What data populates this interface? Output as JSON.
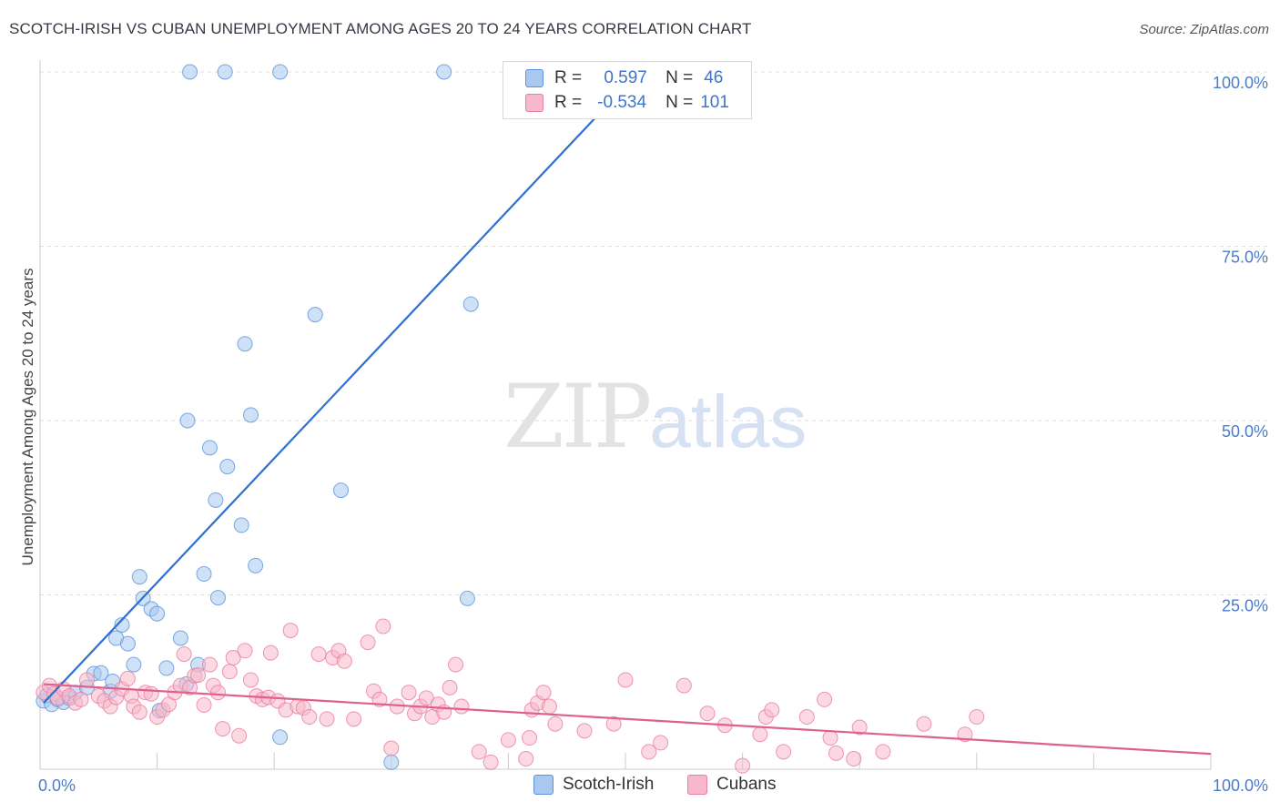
{
  "title": "SCOTCH-IRISH VS CUBAN UNEMPLOYMENT AMONG AGES 20 TO 24 YEARS CORRELATION CHART",
  "source": "Source: ZipAtlas.com",
  "watermark": {
    "zip": "ZIP",
    "atlas": "atlas"
  },
  "legend": {
    "rows": [
      {
        "r_label": "R =",
        "r_value": "0.597",
        "n_label": "N =",
        "n_value": "46",
        "color": "#a8c8f0"
      },
      {
        "r_label": "R =",
        "r_value": "-0.534",
        "n_label": "N =",
        "n_value": "101",
        "color": "#f7b8cb"
      }
    ]
  },
  "bottom_legend": [
    {
      "label": "Scotch-Irish",
      "color": "#a8c8f0"
    },
    {
      "label": "Cubans",
      "color": "#f7b8cb"
    }
  ],
  "chart_data": {
    "type": "scatter",
    "title": "SCOTCH-IRISH VS CUBAN UNEMPLOYMENT AMONG AGES 20 TO 24 YEARS CORRELATION CHART",
    "xlabel": "",
    "ylabel": "Unemployment Among Ages 20 to 24 years",
    "xlim": [
      0,
      100
    ],
    "ylim": [
      0,
      100
    ],
    "x_tick_labels": [
      "0.0%",
      "100.0%"
    ],
    "y_tick_labels": [
      "25.0%",
      "50.0%",
      "75.0%",
      "100.0%"
    ],
    "y_ticks": [
      25,
      50,
      75,
      100
    ],
    "grid": true,
    "legend_position": "top-center",
    "series": [
      {
        "name": "Scotch-Irish",
        "color": "#5b93dc",
        "fill": "#a8c8f0",
        "trend_color": "#2e6fd0",
        "trend": [
          [
            0.3,
            9.5
          ],
          [
            50,
            98
          ]
        ],
        "points": [
          [
            0.3,
            9.8
          ],
          [
            0.6,
            10.6
          ],
          [
            1.0,
            9.3
          ],
          [
            1.5,
            10.0
          ],
          [
            2.0,
            9.6
          ],
          [
            2.5,
            10.2
          ],
          [
            3.0,
            11.0
          ],
          [
            4.0,
            11.7
          ],
          [
            4.6,
            13.7
          ],
          [
            5.2,
            13.8
          ],
          [
            6.0,
            11.2
          ],
          [
            6.2,
            12.6
          ],
          [
            6.5,
            18.8
          ],
          [
            7.0,
            20.7
          ],
          [
            7.5,
            18.0
          ],
          [
            8.0,
            15.0
          ],
          [
            8.5,
            27.6
          ],
          [
            8.8,
            24.5
          ],
          [
            9.5,
            23.0
          ],
          [
            10.0,
            22.3
          ],
          [
            10.2,
            8.4
          ],
          [
            10.8,
            14.5
          ],
          [
            12.0,
            18.8
          ],
          [
            12.5,
            12.2
          ],
          [
            12.6,
            50.0
          ],
          [
            13.5,
            15.0
          ],
          [
            14.0,
            28.0
          ],
          [
            14.5,
            46.1
          ],
          [
            15.0,
            38.6
          ],
          [
            15.2,
            24.6
          ],
          [
            16.0,
            43.4
          ],
          [
            17.2,
            35.0
          ],
          [
            17.5,
            61.0
          ],
          [
            18.0,
            50.8
          ],
          [
            18.4,
            29.2
          ],
          [
            20.5,
            4.6
          ],
          [
            23.5,
            65.2
          ],
          [
            25.7,
            40.0
          ],
          [
            30.0,
            1.0
          ],
          [
            36.5,
            24.5
          ],
          [
            36.8,
            66.7
          ],
          [
            12.8,
            100
          ],
          [
            15.8,
            100
          ],
          [
            20.5,
            100
          ],
          [
            34.5,
            100
          ]
        ]
      },
      {
        "name": "Cubans",
        "color": "#e87ea0",
        "fill": "#f7b8cb",
        "trend_color": "#e0608c",
        "trend": [
          [
            0.3,
            12.2
          ],
          [
            100,
            2.2
          ]
        ],
        "points": [
          [
            0.3,
            11.0
          ],
          [
            0.8,
            12.0
          ],
          [
            1.2,
            10.8
          ],
          [
            1.5,
            10.2
          ],
          [
            2.0,
            11.5
          ],
          [
            2.5,
            10.5
          ],
          [
            3.0,
            9.5
          ],
          [
            3.5,
            10.0
          ],
          [
            4.0,
            12.8
          ],
          [
            5.0,
            10.5
          ],
          [
            5.5,
            9.8
          ],
          [
            6.0,
            9.0
          ],
          [
            6.5,
            10.3
          ],
          [
            7.0,
            11.5
          ],
          [
            7.5,
            13.0
          ],
          [
            7.8,
            10.5
          ],
          [
            8.0,
            9.0
          ],
          [
            8.5,
            8.2
          ],
          [
            9.0,
            11.0
          ],
          [
            9.5,
            10.8
          ],
          [
            10.0,
            7.5
          ],
          [
            10.5,
            8.5
          ],
          [
            11.0,
            9.3
          ],
          [
            11.5,
            11.0
          ],
          [
            12.0,
            12.0
          ],
          [
            12.3,
            16.5
          ],
          [
            12.8,
            11.7
          ],
          [
            13.2,
            13.4
          ],
          [
            13.5,
            13.5
          ],
          [
            14.0,
            9.2
          ],
          [
            14.5,
            15.0
          ],
          [
            14.8,
            12.0
          ],
          [
            15.2,
            11.0
          ],
          [
            15.6,
            5.8
          ],
          [
            16.2,
            14.0
          ],
          [
            16.5,
            16.0
          ],
          [
            17.0,
            4.8
          ],
          [
            17.5,
            17.0
          ],
          [
            18.0,
            12.8
          ],
          [
            18.5,
            10.5
          ],
          [
            19.0,
            10.0
          ],
          [
            19.5,
            10.3
          ],
          [
            19.7,
            16.7
          ],
          [
            20.3,
            9.8
          ],
          [
            21.0,
            8.5
          ],
          [
            21.4,
            19.9
          ],
          [
            22.0,
            9.0
          ],
          [
            22.5,
            8.8
          ],
          [
            23.0,
            7.5
          ],
          [
            23.8,
            16.5
          ],
          [
            24.5,
            7.2
          ],
          [
            25.0,
            16.0
          ],
          [
            25.5,
            17.0
          ],
          [
            26.0,
            15.5
          ],
          [
            26.8,
            7.2
          ],
          [
            28.0,
            18.2
          ],
          [
            28.5,
            11.2
          ],
          [
            29.0,
            10.0
          ],
          [
            29.3,
            20.5
          ],
          [
            30.0,
            3.0
          ],
          [
            30.5,
            9.0
          ],
          [
            31.5,
            11.0
          ],
          [
            32.0,
            8.0
          ],
          [
            32.5,
            9.0
          ],
          [
            33.0,
            10.2
          ],
          [
            33.5,
            7.5
          ],
          [
            34.0,
            9.3
          ],
          [
            34.5,
            8.2
          ],
          [
            35.0,
            11.7
          ],
          [
            35.5,
            15.0
          ],
          [
            36.0,
            9.0
          ],
          [
            37.5,
            2.5
          ],
          [
            38.5,
            1.0
          ],
          [
            40.0,
            4.2
          ],
          [
            41.5,
            1.5
          ],
          [
            41.8,
            4.5
          ],
          [
            42.0,
            8.5
          ],
          [
            42.5,
            9.5
          ],
          [
            43.0,
            11.0
          ],
          [
            43.5,
            9.0
          ],
          [
            44.0,
            6.5
          ],
          [
            46.5,
            5.5
          ],
          [
            49.0,
            6.5
          ],
          [
            50.0,
            12.8
          ],
          [
            52.0,
            2.5
          ],
          [
            53.0,
            3.8
          ],
          [
            55.0,
            12.0
          ],
          [
            57.0,
            8.0
          ],
          [
            58.5,
            6.3
          ],
          [
            60.0,
            0.5
          ],
          [
            61.5,
            5.0
          ],
          [
            62.0,
            7.5
          ],
          [
            62.5,
            8.5
          ],
          [
            63.5,
            2.5
          ],
          [
            65.5,
            7.5
          ],
          [
            67.0,
            10.0
          ],
          [
            67.5,
            4.5
          ],
          [
            68.0,
            2.3
          ],
          [
            69.5,
            1.5
          ],
          [
            70.0,
            6.0
          ],
          [
            72.0,
            2.5
          ],
          [
            75.5,
            6.5
          ],
          [
            79.0,
            5.0
          ],
          [
            80.0,
            7.5
          ]
        ]
      }
    ]
  }
}
